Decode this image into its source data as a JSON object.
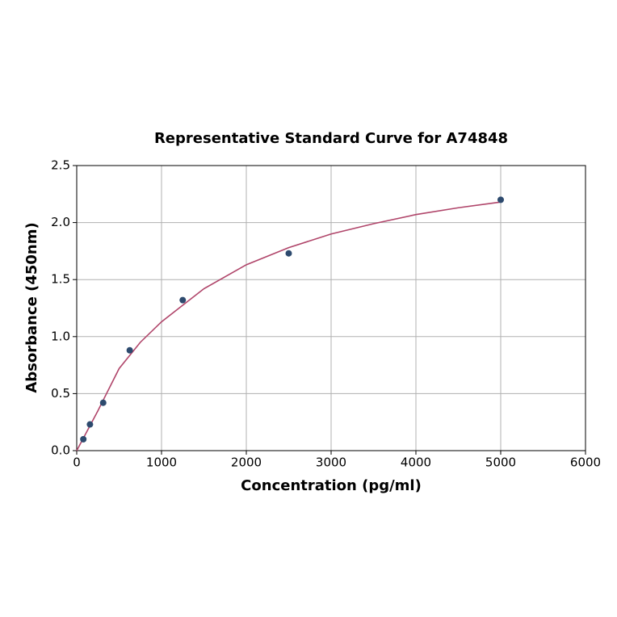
{
  "chart_data": {
    "type": "scatter",
    "title": "Representative Standard Curve for A74848",
    "xlabel": "Concentration (pg/ml)",
    "ylabel": "Absorbance (450nm)",
    "xlim": [
      0,
      6000
    ],
    "xticks": [
      0,
      1000,
      2000,
      3000,
      4000,
      5000,
      6000
    ],
    "ylim": [
      0,
      2.5
    ],
    "yticks": [
      {
        "value": 0,
        "label": "0.0"
      },
      0.5,
      {
        "value": 1,
        "label": "1.0"
      },
      1.5,
      {
        "value": 2,
        "label": "2.0"
      },
      2.5
    ],
    "grid": true,
    "series": [
      {
        "type": "line",
        "color": "#b0456a",
        "x": [
          0,
          100,
          250,
          500,
          750,
          1000,
          1500,
          2000,
          2500,
          3000,
          3500,
          4000,
          4500,
          5000
        ],
        "values": [
          0,
          0.14,
          0.35,
          0.72,
          0.95,
          1.13,
          1.42,
          1.63,
          1.78,
          1.9,
          1.99,
          2.07,
          2.13,
          2.18
        ]
      },
      {
        "type": "scatter",
        "color": "#2d4a6e",
        "x": [
          78,
          156,
          312,
          625,
          1250,
          2500,
          5000
        ],
        "values": [
          0.1,
          0.23,
          0.42,
          0.88,
          1.32,
          1.73,
          2.2
        ]
      }
    ]
  }
}
